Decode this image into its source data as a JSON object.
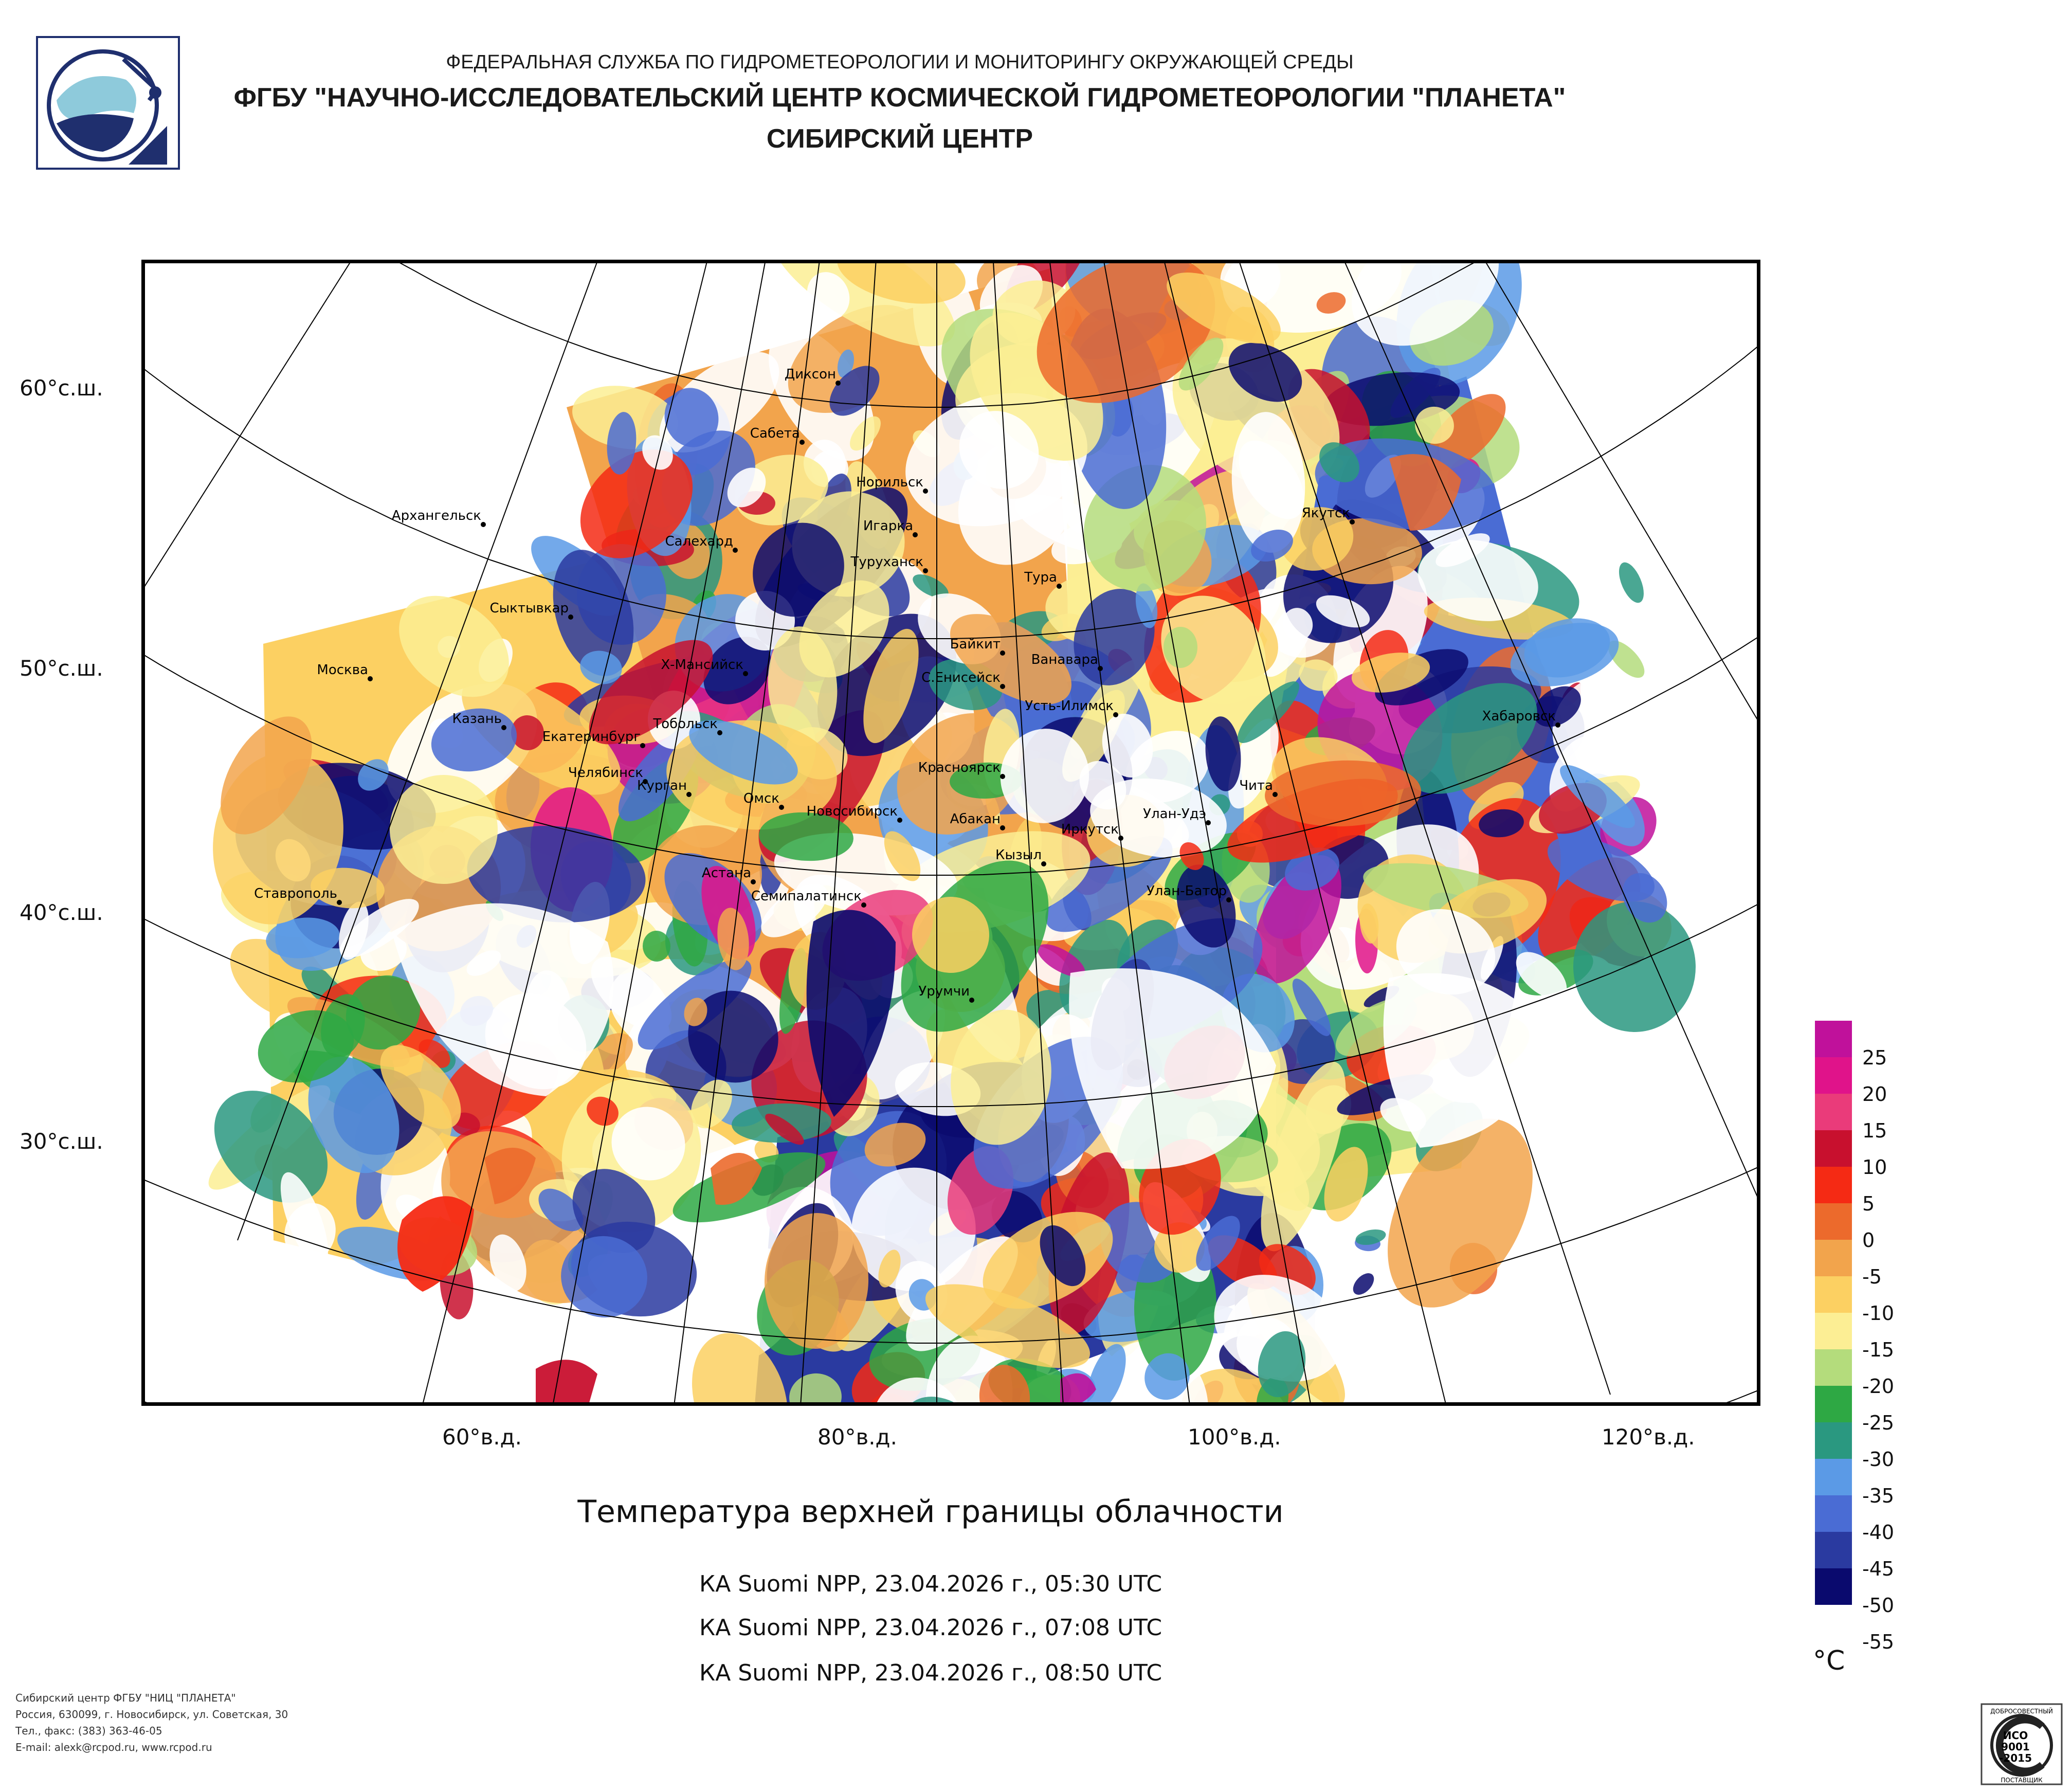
{
  "header": {
    "line1": "ФЕДЕРАЛЬНАЯ СЛУЖБА ПО ГИДРОМЕТЕОРОЛОГИИ И МОНИТОРИНГУ ОКРУЖАЮЩЕЙ СРЕДЫ",
    "line2": "ФГБУ \"НАУЧНО-ИССЛЕДОВАТЕЛЬСКИЙ ЦЕНТР КОСМИЧЕСКОЙ ГИДРОМЕТЕОРОЛОГИИ \"ПЛАНЕТА\"",
    "line3": "СИБИРСКИЙ ЦЕНТР"
  },
  "map": {
    "lat_labels": [
      "60°с.ш.",
      "50°с.ш.",
      "40°с.ш.",
      "30°с.ш."
    ],
    "lon_labels": [
      "60°в.д.",
      "80°в.д.",
      "100°в.д.",
      "120°в.д."
    ],
    "cities": [
      "Диксон",
      "Сабета",
      "Норильск",
      "Архангельск",
      "Игарка",
      "Салехард",
      "Туруханск",
      "Тура",
      "Якутск",
      "Сыктывкар",
      "Байкит",
      "Ванавара",
      "Москва",
      "Х-Мансийск",
      "С.Енисейск",
      "Усть-Илимск",
      "Казань",
      "Тобольск",
      "Хабаровск",
      "Екатеринбург",
      "Челябинск",
      "Курган",
      "Красноярск",
      "Омск",
      "Новосибирск",
      "Абакан",
      "Улан-Удэ",
      "Чита",
      "Иркутск",
      "Кызыл",
      "Астана",
      "Ставрополь",
      "Семипалатинск",
      "Улан-Батор",
      "Урумчи"
    ]
  },
  "title": "Температура верхней границы облачности",
  "passes": [
    "КА Suomi NPP, 23.04.2026 г., 05:30 UTC",
    "КА Suomi NPP, 23.04.2026 г., 07:08 UTC",
    "КА Suomi NPP, 23.04.2026 г., 08:50 UTC"
  ],
  "legend": {
    "unit": "°C",
    "labels": [
      "25",
      "20",
      "15",
      "10",
      "5",
      "0",
      "-5",
      "-10",
      "-15",
      "-20",
      "-25",
      "-30",
      "-35",
      "-40",
      "-45",
      "-50",
      "-55"
    ],
    "colors": [
      "#c0119b",
      "#e0138a",
      "#ea3b7a",
      "#c8102e",
      "#f52a14",
      "#ec6a2c",
      "#f2a44c",
      "#fcd062",
      "#fcee94",
      "#b4dc7c",
      "#2ea844",
      "#2a9880",
      "#5b9ae6",
      "#4a6cd4",
      "#2a3aa0",
      "#0a0a6e"
    ]
  },
  "footer": {
    "line1": "Сибирский центр ФГБУ \"НИЦ \"ПЛАНЕТА\"",
    "line2": "Россия, 630099, г. Новосибирск, ул. Советская, 30",
    "line3": "Тел., факс: (383) 363-46-05",
    "line4": "E-mail: alexk@rcpod.ru, www.rcpod.ru"
  },
  "cert": {
    "top": "ДОБРОСОВЕСТНЫЙ",
    "l1": "ИСО",
    "l2": "9001",
    "l3": "-2015",
    "bottom": "ПОСТАВЩИК"
  }
}
